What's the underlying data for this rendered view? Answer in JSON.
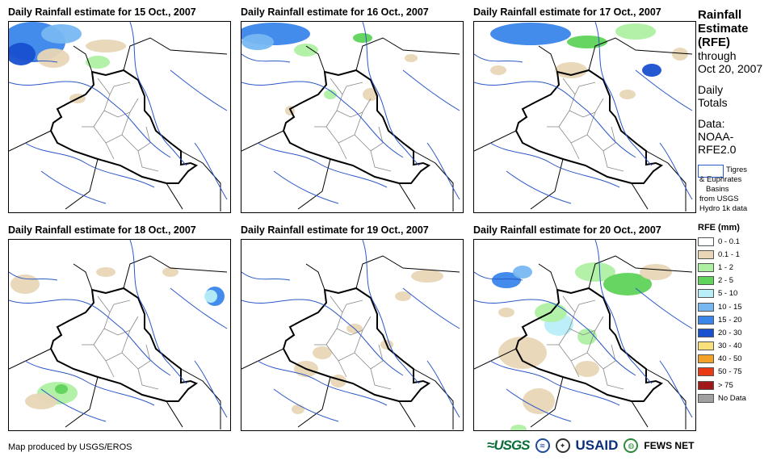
{
  "panels": [
    {
      "title": "Daily Rainfall estimate for 15 Oct., 2007"
    },
    {
      "title": "Daily Rainfall estimate for 16 Oct., 2007"
    },
    {
      "title": "Daily Rainfall estimate for 17 Oct., 2007"
    },
    {
      "title": "Daily Rainfall estimate for 18 Oct., 2007"
    },
    {
      "title": "Daily Rainfall estimate for 19 Oct., 2007"
    },
    {
      "title": "Daily Rainfall estimate for 20 Oct., 2007"
    }
  ],
  "sidebar": {
    "title_lines": [
      "Rainfall",
      "Estimate",
      "(RFE)"
    ],
    "through": "through",
    "date": "Oct 20, 2007",
    "daily": "Daily",
    "totals": "Totals",
    "data_label": "Data:",
    "data_source_1": "NOAA-",
    "data_source_2": "RFE2.0",
    "basins_1": "Tigres",
    "basins_2": "& Euphrates",
    "basins_3": "Basins",
    "basins_4": "from USGS",
    "basins_5": "Hydro 1k data"
  },
  "legend": {
    "title": "RFE (mm)",
    "items": [
      {
        "label": "0 - 0.1",
        "color": "#ffffff"
      },
      {
        "label": "0.1 - 1",
        "color": "#e8d6b6"
      },
      {
        "label": "1 - 2",
        "color": "#aef0a2"
      },
      {
        "label": "2 - 5",
        "color": "#5fd35a"
      },
      {
        "label": "5 - 10",
        "color": "#b8eef7"
      },
      {
        "label": "10 - 15",
        "color": "#78b8f2"
      },
      {
        "label": "15 - 20",
        "color": "#3a86ea"
      },
      {
        "label": "20 - 30",
        "color": "#1850d0"
      },
      {
        "label": "30 - 40",
        "color": "#f8e07a"
      },
      {
        "label": "40 - 50",
        "color": "#f4a12a"
      },
      {
        "label": "50 - 75",
        "color": "#ea3a14"
      },
      {
        "label": "> 75",
        "color": "#a01818"
      },
      {
        "label": "No Data",
        "color": "#a0a0a0"
      }
    ]
  },
  "footer": {
    "credit": "Map produced by USGS/EROS",
    "logo_usgs": "≈USGS",
    "logo_noaa": "NOAA",
    "logo_dhs": "DHS",
    "logo_usaid": "USAID",
    "logo_fews": "FEWS NET"
  }
}
